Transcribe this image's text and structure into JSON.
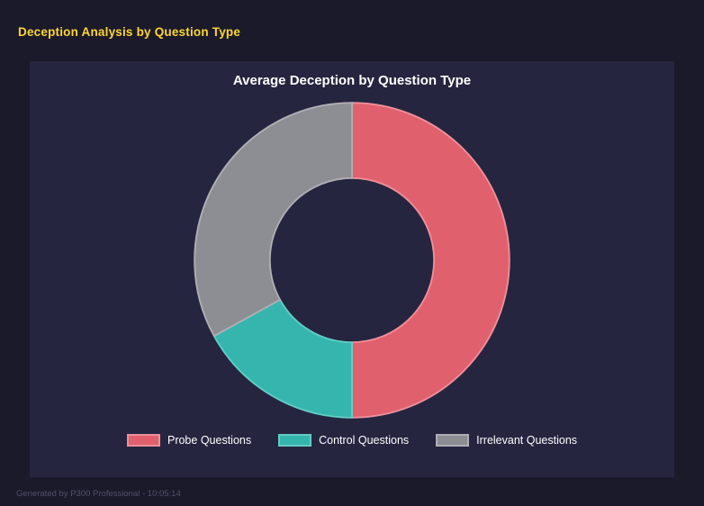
{
  "header": {
    "title": "Deception Analysis by Question Type"
  },
  "chart_data": {
    "type": "pie",
    "variant": "doughnut",
    "title": "Average Deception by Question Type",
    "categories": [
      "Probe Questions",
      "Control Questions",
      "Irrelevant Questions"
    ],
    "values": [
      50,
      17,
      33
    ],
    "values_note": "approximate percentage shares estimated from arc angles; no numeric labels shown in chart",
    "colors": [
      "#e0606e",
      "#35b5ad",
      "#8d8d94"
    ],
    "border_colors": [
      "#ef8f99",
      "#63ccc5",
      "#aeaeb4"
    ],
    "inner_radius_ratio": 0.52,
    "start_angle_deg": 0,
    "direction": "clockwise",
    "legend_position": "bottom",
    "background": "#252540"
  },
  "footer": {
    "text": "Generated by P300 Professional - 10:05:14"
  }
}
